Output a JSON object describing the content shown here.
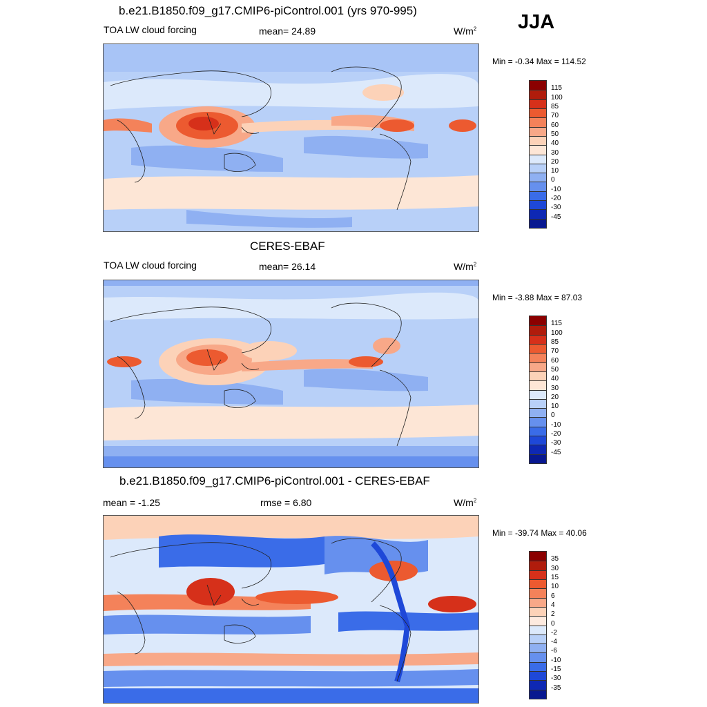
{
  "season": "JJA",
  "panels": [
    {
      "title": "b.e21.B1850.f09_g17.CMIP6-piControl.001 (yrs 970-995)",
      "left_label": "TOA LW cloud forcing",
      "center_label": "mean=  24.89",
      "units_base": "W/m",
      "units_sup": "2",
      "minmax": "Min =  -0.34 Max = 114.52",
      "palette": "abs",
      "levels": [
        "115",
        "100",
        "85",
        "70",
        "60",
        "50",
        "40",
        "30",
        "20",
        "10",
        "0",
        "-10",
        "-20",
        "-30",
        "-45"
      ]
    },
    {
      "title": "CERES-EBAF",
      "left_label": "TOA LW cloud forcing",
      "center_label": "mean=  26.14",
      "units_base": "W/m",
      "units_sup": "2",
      "minmax": "Min =  -3.88 Max =  87.03",
      "palette": "abs",
      "levels": [
        "115",
        "100",
        "85",
        "70",
        "60",
        "50",
        "40",
        "30",
        "20",
        "10",
        "0",
        "-10",
        "-20",
        "-30",
        "-45"
      ]
    },
    {
      "title": "b.e21.B1850.f09_g17.CMIP6-piControl.001 - CERES-EBAF",
      "left_label": "mean =  -1.25",
      "center_label": "rmse =   6.80",
      "units_base": "W/m",
      "units_sup": "2",
      "minmax": "Min = -39.74 Max =  40.06",
      "palette": "diff",
      "levels": [
        "35",
        "30",
        "15",
        "10",
        "6",
        "4",
        "2",
        "0",
        "-2",
        "-4",
        "-6",
        "-10",
        "-15",
        "-30",
        "-35"
      ]
    }
  ],
  "colors": {
    "abs": [
      "#8b0000",
      "#b01c0c",
      "#d6301a",
      "#ec5a30",
      "#f4825a",
      "#f8a888",
      "#fcd2b8",
      "#fde6d6",
      "#dce9fb",
      "#b8d0f8",
      "#8fb0f2",
      "#6690ee",
      "#3a6ce8",
      "#1e48d8",
      "#0e28b4",
      "#081890"
    ],
    "diff": [
      "#8b0000",
      "#b01c0c",
      "#d6301a",
      "#ec5a30",
      "#f4825a",
      "#f8a888",
      "#fcd2b8",
      "#fdeadf",
      "#dce9fb",
      "#b8d0f8",
      "#8fb0f2",
      "#6690ee",
      "#3a6ce8",
      "#1e48d8",
      "#0e28b4",
      "#081890"
    ]
  }
}
